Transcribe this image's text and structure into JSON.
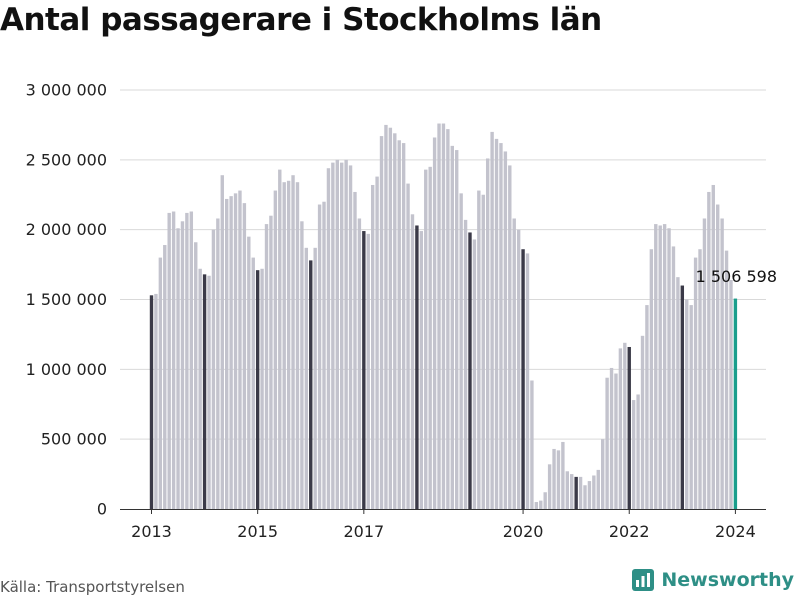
{
  "title": "Antal passagerare i Stockholms län",
  "source": "Källa: Transportstyrelsen",
  "brand": "Newsworthy",
  "colors": {
    "bar": "#c3c3cd",
    "january": "#3b3a48",
    "highlight": "#1a9e8c",
    "grid": "#d9d9d9",
    "brand": "#2e8f86"
  },
  "chart_data": {
    "type": "bar",
    "ylim": [
      0,
      3000000
    ],
    "yticks": [
      "0",
      "500 000",
      "1 000 000",
      "1 500 000",
      "2 000 000",
      "2 500 000",
      "3 000 000"
    ],
    "xticks": [
      "2013",
      "2015",
      "2017",
      "2020",
      "2022",
      "2024"
    ],
    "annotation": "1 506 598",
    "start": "2013-01",
    "grid": true,
    "values": [
      1530000,
      1540000,
      1800000,
      1890000,
      2120000,
      2130000,
      2010000,
      2060000,
      2120000,
      2130000,
      1910000,
      1720000,
      1680000,
      1670000,
      2000000,
      2080000,
      2390000,
      2220000,
      2240000,
      2260000,
      2280000,
      2190000,
      1950000,
      1800000,
      1710000,
      1720000,
      2040000,
      2100000,
      2280000,
      2430000,
      2340000,
      2350000,
      2390000,
      2340000,
      2060000,
      1870000,
      1780000,
      1870000,
      2180000,
      2200000,
      2440000,
      2480000,
      2500000,
      2480000,
      2500000,
      2460000,
      2270000,
      2080000,
      1990000,
      1970000,
      2320000,
      2380000,
      2670000,
      2750000,
      2730000,
      2690000,
      2640000,
      2620000,
      2330000,
      2110000,
      2030000,
      1990000,
      2430000,
      2450000,
      2660000,
      2760000,
      2760000,
      2720000,
      2600000,
      2570000,
      2260000,
      2070000,
      1980000,
      1930000,
      2280000,
      2250000,
      2510000,
      2700000,
      2650000,
      2620000,
      2560000,
      2460000,
      2080000,
      2000000,
      1860000,
      1830000,
      920000,
      50000,
      60000,
      120000,
      320000,
      430000,
      420000,
      480000,
      270000,
      250000,
      230000,
      230000,
      170000,
      200000,
      240000,
      280000,
      500000,
      940000,
      1010000,
      970000,
      1150000,
      1190000,
      1160000,
      780000,
      820000,
      1240000,
      1460000,
      1860000,
      2040000,
      2030000,
      2040000,
      2010000,
      1880000,
      1660000,
      1600000,
      1500000,
      1460000,
      1800000,
      1860000,
      2080000,
      2270000,
      2320000,
      2180000,
      2080000,
      1850000,
      1640000,
      1506598
    ]
  }
}
